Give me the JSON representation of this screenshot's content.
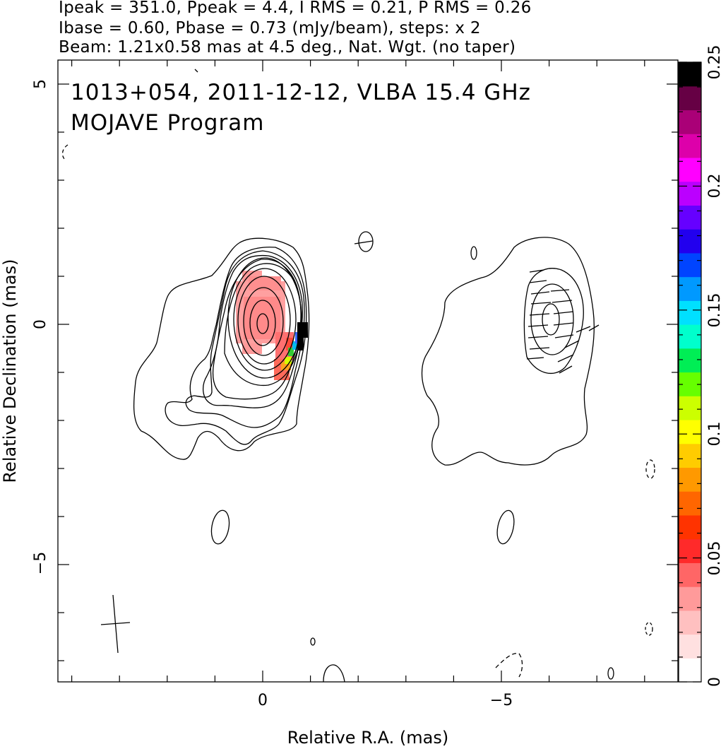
{
  "header": {
    "line1": "Ipeak = 351.0, Ppeak = 4.4, I RMS = 0.21, P RMS = 0.26",
    "line2": "Ibase = 0.60, Pbase = 0.73 (mJy/beam), steps: x 2",
    "line3": "Beam: 1.21x0.58 mas at 4.5 deg., Nat. Wgt. (no taper)"
  },
  "plot": {
    "title_line1": "1013+054, 2011-12-12, VLBA 15.4 GHz",
    "title_line2": "MOJAVE Program",
    "xlabel": "Relative R.A. (mas)",
    "ylabel": "Relative Declination (mas)",
    "x_ticks": [
      "0",
      "−5"
    ],
    "y_ticks": [
      "5",
      "0",
      "−5"
    ]
  },
  "colorbar": {
    "ticks": [
      "0",
      "0.05",
      "0.1",
      "0.15",
      "0.2",
      "0.25"
    ],
    "colors": [
      "#ffffff",
      "#ffe0e0",
      "#ffc0c0",
      "#ff9a9a",
      "#ff6666",
      "#ff2a2a",
      "#ff3300",
      "#ff6600",
      "#ff9900",
      "#ffcc00",
      "#ffff00",
      "#ccff00",
      "#66ff00",
      "#00ee55",
      "#00ffcc",
      "#00e0ff",
      "#0099ff",
      "#0044ff",
      "#2200ee",
      "#6600ff",
      "#bb00ff",
      "#ff00ff",
      "#dd00aa",
      "#aa0077",
      "#660044",
      "#000000"
    ]
  },
  "chart_data": {
    "type": "heatmap",
    "title": "1013+054, 2011-12-12, VLBA 15.4 GHz",
    "subtitle": "MOJAVE Program",
    "xlabel": "Relative R.A. (mas)",
    "ylabel": "Relative Declination (mas)",
    "xlim": [
      5.0,
      -8.0
    ],
    "ylim": [
      -7.5,
      5.5
    ],
    "colorbar_range": [
      0,
      0.25
    ],
    "colorbar_ticks": [
      0,
      0.05,
      0.1,
      0.15,
      0.2,
      0.25
    ],
    "contour_base_mJy_per_beam": 0.6,
    "contour_step_factor": 2,
    "peak_intensity_mJy_per_beam": 351.0,
    "peak_polarization_mJy_per_beam": 4.4,
    "beam": {
      "major_mas": 1.21,
      "minor_mas": 0.58,
      "pa_deg": 4.5
    },
    "features": [
      {
        "name": "core",
        "ra_mas": 0.0,
        "dec_mas": 0.0
      },
      {
        "name": "polarized_spot",
        "ra_mas": -6.0,
        "dec_mas": 0.1
      }
    ]
  }
}
